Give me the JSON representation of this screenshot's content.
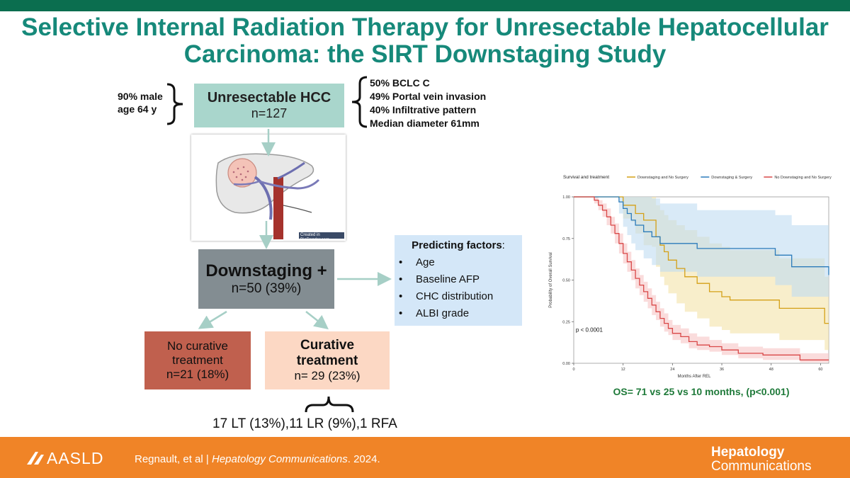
{
  "title": "Selective Internal Radiation Therapy for Unresectable Hepatocellular Carcinoma: the SIRT Downstaging Study",
  "demographics": [
    "90% male",
    "age 64 y"
  ],
  "baseline_box": {
    "heading": "Unresectable HCC",
    "n": "n=127"
  },
  "features": [
    "50% BCLC C",
    "49% Portal vein invasion",
    "40% Infiltrative pattern",
    "Median diameter 61mm"
  ],
  "liver_image": {
    "credit": "Created in BioRender.com"
  },
  "downstaging_box": {
    "heading": "Downstaging +",
    "n": "n=50 (39%)"
  },
  "predicting": {
    "heading": "Predicting factors",
    "suffix": ":",
    "items": [
      "Age",
      "Baseline AFP",
      "CHC distribution",
      "ALBI grade"
    ]
  },
  "no_curative_box": {
    "line1": "No curative",
    "line2": "treatment",
    "n": "n=21 (18%)"
  },
  "curative_box": {
    "line1": "Curative",
    "line2": "treatment",
    "n": "n= 29 (23%)"
  },
  "curative_breakdown": "17 LT (13%),11 LR (9%),1 RFA",
  "chart_data": {
    "type": "line",
    "legend_title": "Survival and treatment",
    "legend_placement": "top",
    "xlabel": "Months After REL",
    "ylabel": "Probability of Overall Survival",
    "xlim": [
      0,
      62
    ],
    "ylim": [
      0,
      1
    ],
    "xticks": [
      0,
      12,
      24,
      36,
      48,
      60
    ],
    "yticks": [
      "0.00",
      "0.25",
      "0.50",
      "0.75",
      "1.00"
    ],
    "annotation": "p < 0.0001",
    "series": [
      {
        "name": "Downstaging and No Surgery",
        "color": "#d4a017",
        "band": "#f3e2a8",
        "x": [
          0,
          11,
          12,
          14,
          15,
          17,
          19,
          20,
          21,
          22,
          23,
          25,
          27,
          30,
          33,
          36,
          38,
          43,
          50,
          54,
          60,
          61,
          62
        ],
        "y": [
          1,
          1,
          0.95,
          0.95,
          0.9,
          0.86,
          0.86,
          0.76,
          0.71,
          0.67,
          0.62,
          0.57,
          0.52,
          0.48,
          0.43,
          0.4,
          0.38,
          0.38,
          0.33,
          0.33,
          0.33,
          0.24,
          0.24
        ],
        "lower": [
          1,
          1,
          0.87,
          0.85,
          0.78,
          0.71,
          0.7,
          0.58,
          0.52,
          0.47,
          0.42,
          0.36,
          0.31,
          0.27,
          0.22,
          0.2,
          0.18,
          0.18,
          0.14,
          0.14,
          0.14,
          0.08,
          0.08
        ],
        "upper": [
          1,
          1,
          1,
          1,
          1,
          1,
          1,
          0.95,
          0.92,
          0.89,
          0.86,
          0.83,
          0.8,
          0.76,
          0.72,
          0.7,
          0.68,
          0.68,
          0.63,
          0.63,
          0.63,
          0.52,
          0.52
        ]
      },
      {
        "name": "Downstaging & Surgery",
        "color": "#2b7bba",
        "band": "#bfdcf2",
        "x": [
          0,
          10,
          11,
          12,
          13,
          14,
          15,
          17,
          19,
          21,
          23,
          25,
          30,
          38,
          44,
          49,
          52,
          53,
          55,
          62
        ],
        "y": [
          1,
          1,
          0.97,
          0.93,
          0.9,
          0.86,
          0.83,
          0.79,
          0.76,
          0.72,
          0.72,
          0.72,
          0.69,
          0.69,
          0.69,
          0.65,
          0.65,
          0.58,
          0.58,
          0.53
        ],
        "lower": [
          1,
          1,
          0.9,
          0.82,
          0.77,
          0.72,
          0.68,
          0.63,
          0.59,
          0.55,
          0.55,
          0.55,
          0.52,
          0.52,
          0.52,
          0.47,
          0.47,
          0.4,
          0.4,
          0.35
        ],
        "upper": [
          1,
          1,
          1,
          1,
          1,
          1,
          1,
          1,
          0.99,
          0.96,
          0.96,
          0.96,
          0.92,
          0.92,
          0.92,
          0.89,
          0.89,
          0.83,
          0.83,
          0.78
        ]
      },
      {
        "name": "No Downstaging and No Surgery",
        "color": "#d94848",
        "band": "#f6c4c4",
        "x": [
          0,
          4,
          5,
          6,
          7,
          8,
          9,
          10,
          11,
          12,
          13,
          14,
          15,
          16,
          17,
          18,
          19,
          20,
          21,
          22,
          23,
          24,
          26,
          28,
          30,
          33,
          36,
          40,
          46,
          50,
          55,
          58,
          62
        ],
        "y": [
          1,
          1,
          0.98,
          0.95,
          0.92,
          0.88,
          0.83,
          0.78,
          0.72,
          0.66,
          0.61,
          0.56,
          0.51,
          0.47,
          0.43,
          0.39,
          0.35,
          0.31,
          0.27,
          0.24,
          0.21,
          0.18,
          0.16,
          0.13,
          0.11,
          0.1,
          0.08,
          0.06,
          0.05,
          0.05,
          0.02,
          0.02,
          0.02
        ],
        "lower": [
          1,
          1,
          0.96,
          0.92,
          0.88,
          0.83,
          0.78,
          0.72,
          0.66,
          0.6,
          0.55,
          0.5,
          0.45,
          0.41,
          0.37,
          0.33,
          0.29,
          0.26,
          0.22,
          0.19,
          0.17,
          0.14,
          0.12,
          0.09,
          0.08,
          0.07,
          0.05,
          0.03,
          0.02,
          0.02,
          0.005,
          0.005,
          0.005
        ],
        "upper": [
          1,
          1,
          1,
          0.98,
          0.96,
          0.93,
          0.88,
          0.84,
          0.78,
          0.72,
          0.67,
          0.62,
          0.57,
          0.53,
          0.49,
          0.45,
          0.41,
          0.37,
          0.33,
          0.3,
          0.26,
          0.23,
          0.21,
          0.18,
          0.16,
          0.14,
          0.12,
          0.1,
          0.09,
          0.09,
          0.06,
          0.06,
          0.06
        ]
      }
    ]
  },
  "os_summary": "OS= 71 vs 25 vs 10 months, (p<0.001)",
  "footer": {
    "logo_text": "AASLD",
    "citation_authors": "Regnault, et al",
    "separator": "|",
    "citation_journal": "Hepatology Communications",
    "citation_year": ". 2024.",
    "journal_logo_line1": "Hepatology",
    "journal_logo_line2": "Communications"
  }
}
